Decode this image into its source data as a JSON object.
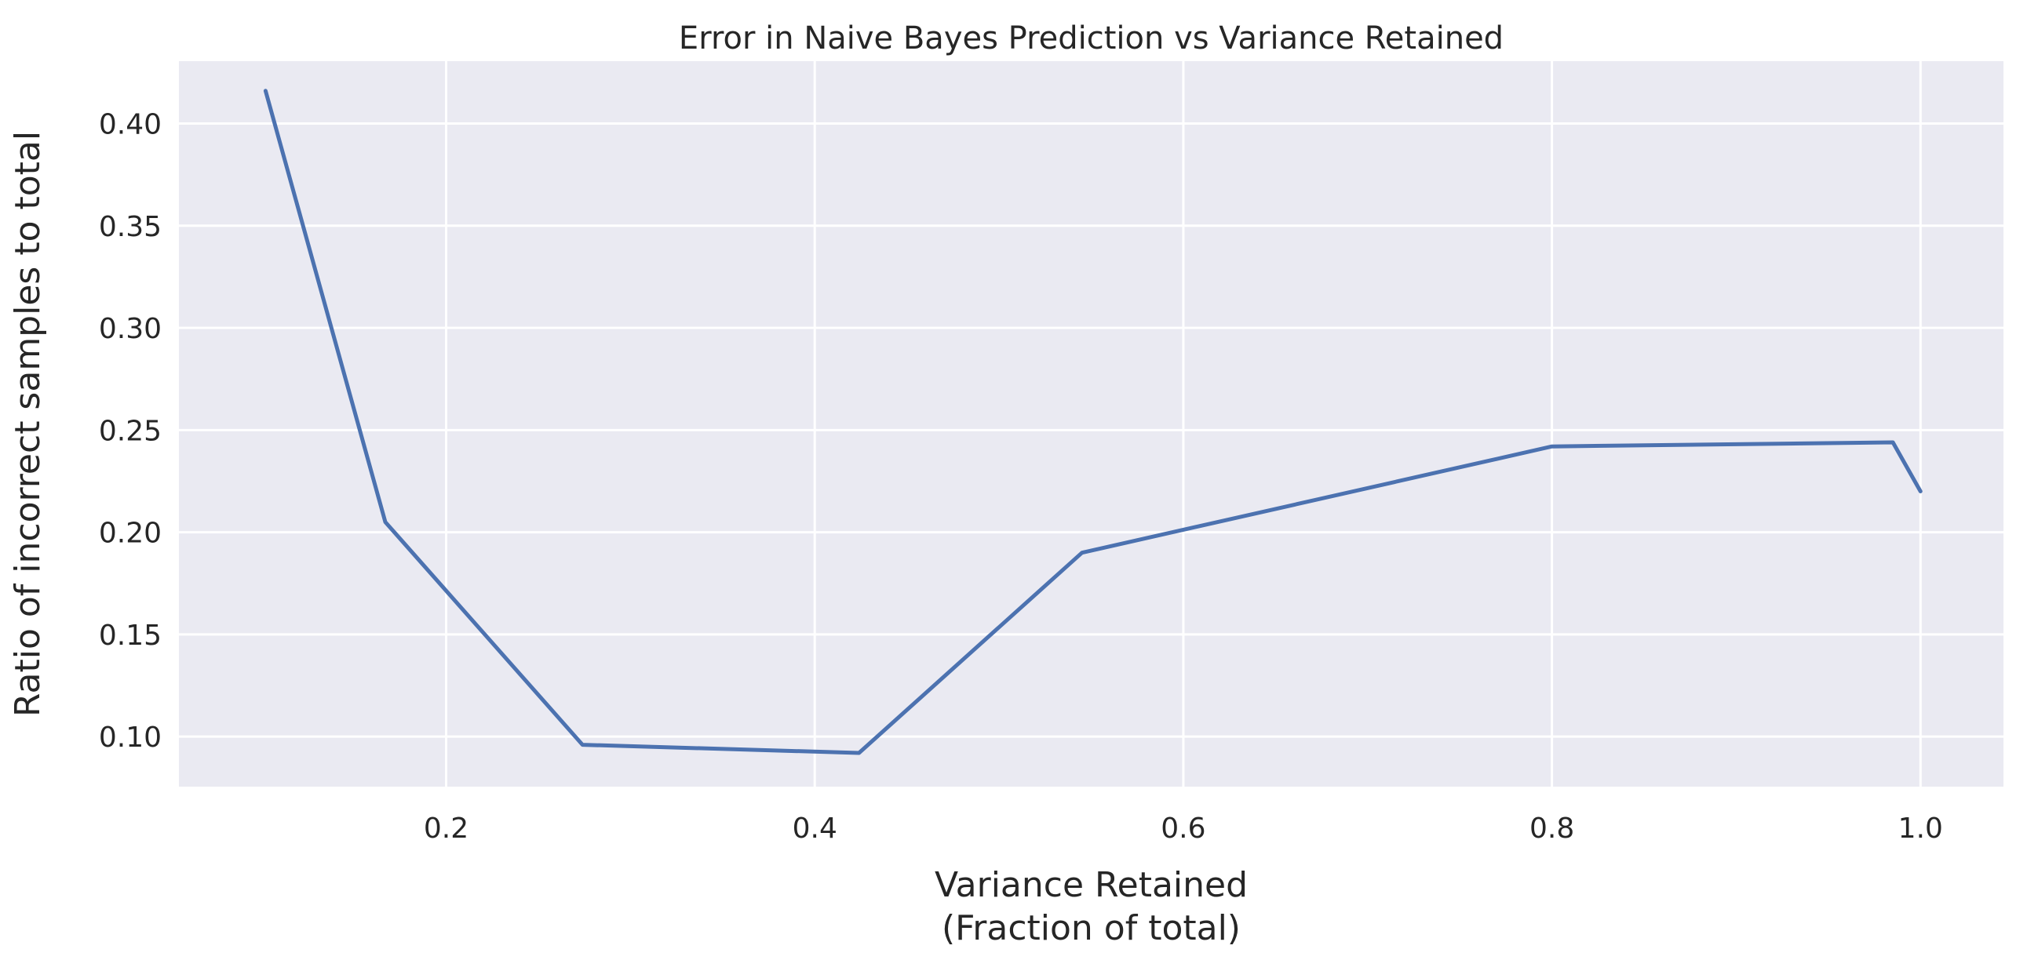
{
  "chart_data": {
    "type": "line",
    "title": "Error in Naive Bayes Prediction vs Variance Retained",
    "xlabel_lines": [
      "Variance Retained",
      "(Fraction of total)"
    ],
    "ylabel": "Ratio of incorrect samples to total",
    "xlim": [
      0.055,
      1.045
    ],
    "ylim": [
      0.0755,
      0.4305
    ],
    "x_ticks": [
      {
        "value": 0.2,
        "label": "0.2"
      },
      {
        "value": 0.4,
        "label": "0.4"
      },
      {
        "value": 0.6,
        "label": "0.6"
      },
      {
        "value": 0.8,
        "label": "0.8"
      },
      {
        "value": 1.0,
        "label": "1.0"
      }
    ],
    "y_ticks": [
      {
        "value": 0.1,
        "label": "0.10"
      },
      {
        "value": 0.15,
        "label": "0.15"
      },
      {
        "value": 0.2,
        "label": "0.20"
      },
      {
        "value": 0.25,
        "label": "0.25"
      },
      {
        "value": 0.3,
        "label": "0.30"
      },
      {
        "value": 0.35,
        "label": "0.35"
      },
      {
        "value": 0.4,
        "label": "0.40"
      }
    ],
    "grid": true,
    "background_color": "#eaeaf2",
    "grid_color": "#ffffff",
    "series": [
      {
        "color": "#4c72b0",
        "x": [
          0.102,
          0.167,
          0.274,
          0.424,
          0.545,
          0.8,
          0.985,
          1.0
        ],
        "y": [
          0.416,
          0.205,
          0.096,
          0.092,
          0.19,
          0.242,
          0.244,
          0.22
        ]
      }
    ]
  }
}
